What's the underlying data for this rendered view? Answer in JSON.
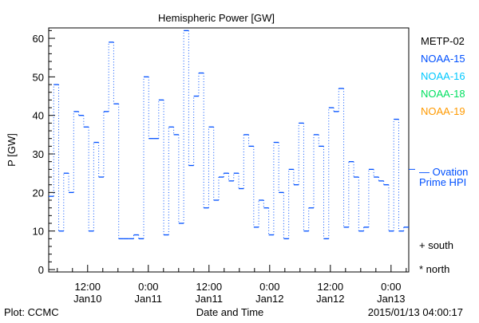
{
  "chart_data": {
    "type": "line",
    "title": "Hemispheric Power [GW]",
    "xlabel": "Date and Time",
    "ylabel": "P [GW]",
    "ylim": [
      0,
      62.7
    ],
    "yticks": [
      0,
      10,
      20,
      30,
      40,
      50,
      60
    ],
    "x_start_hours": -7.7,
    "x_end_hours": 63.5,
    "x_unit": "hours from 2015-01-10 12:00",
    "xticks": [
      {
        "hours": 0,
        "time": "12:00",
        "date": "Jan10"
      },
      {
        "hours": 12,
        "time": "0:00",
        "date": "Jan11"
      },
      {
        "hours": 24,
        "time": "12:00",
        "date": "Jan11"
      },
      {
        "hours": 36,
        "time": "0:00",
        "date": "Jan12"
      },
      {
        "hours": 48,
        "time": "12:00",
        "date": "Jan12"
      },
      {
        "hours": 60,
        "time": "0:00",
        "date": "Jan13"
      }
    ],
    "series": [
      {
        "name": "NOAA-15",
        "color": "#0050ff",
        "style": "step",
        "values": [
          19,
          48,
          10,
          25,
          20,
          41,
          40,
          37,
          10,
          33,
          24,
          41,
          59,
          43,
          8,
          8,
          8,
          9,
          8,
          50,
          34,
          34,
          44,
          9,
          37,
          35,
          12,
          62,
          27,
          45,
          51,
          16,
          37,
          18,
          24,
          25,
          23,
          25,
          21,
          35,
          32,
          11,
          18,
          16,
          9,
          33,
          20,
          8,
          26,
          22,
          38,
          10,
          16,
          35,
          32,
          8,
          42,
          41,
          47,
          11,
          28,
          24,
          10,
          11,
          26,
          24,
          23,
          22,
          10,
          39,
          10,
          11
        ]
      }
    ],
    "ovation_prime_hpi": 26,
    "legend": [
      {
        "label": "METP-02",
        "color": "#000000"
      },
      {
        "label": "NOAA-15",
        "color": "#0050ff"
      },
      {
        "label": "NOAA-16",
        "color": "#00c8ff"
      },
      {
        "label": "NOAA-18",
        "color": "#00e060"
      },
      {
        "label": "NOAA-19",
        "color": "#ff9a00"
      }
    ],
    "legend_position": "right",
    "ovation_label_1": "— Ovation",
    "ovation_label_2": "Prime HPI",
    "south_label": "+ south",
    "north_label": "* north"
  },
  "footer": {
    "plot_credit": "Plot: CCMC",
    "timestamp": "2015/01/13 04:00:17"
  }
}
